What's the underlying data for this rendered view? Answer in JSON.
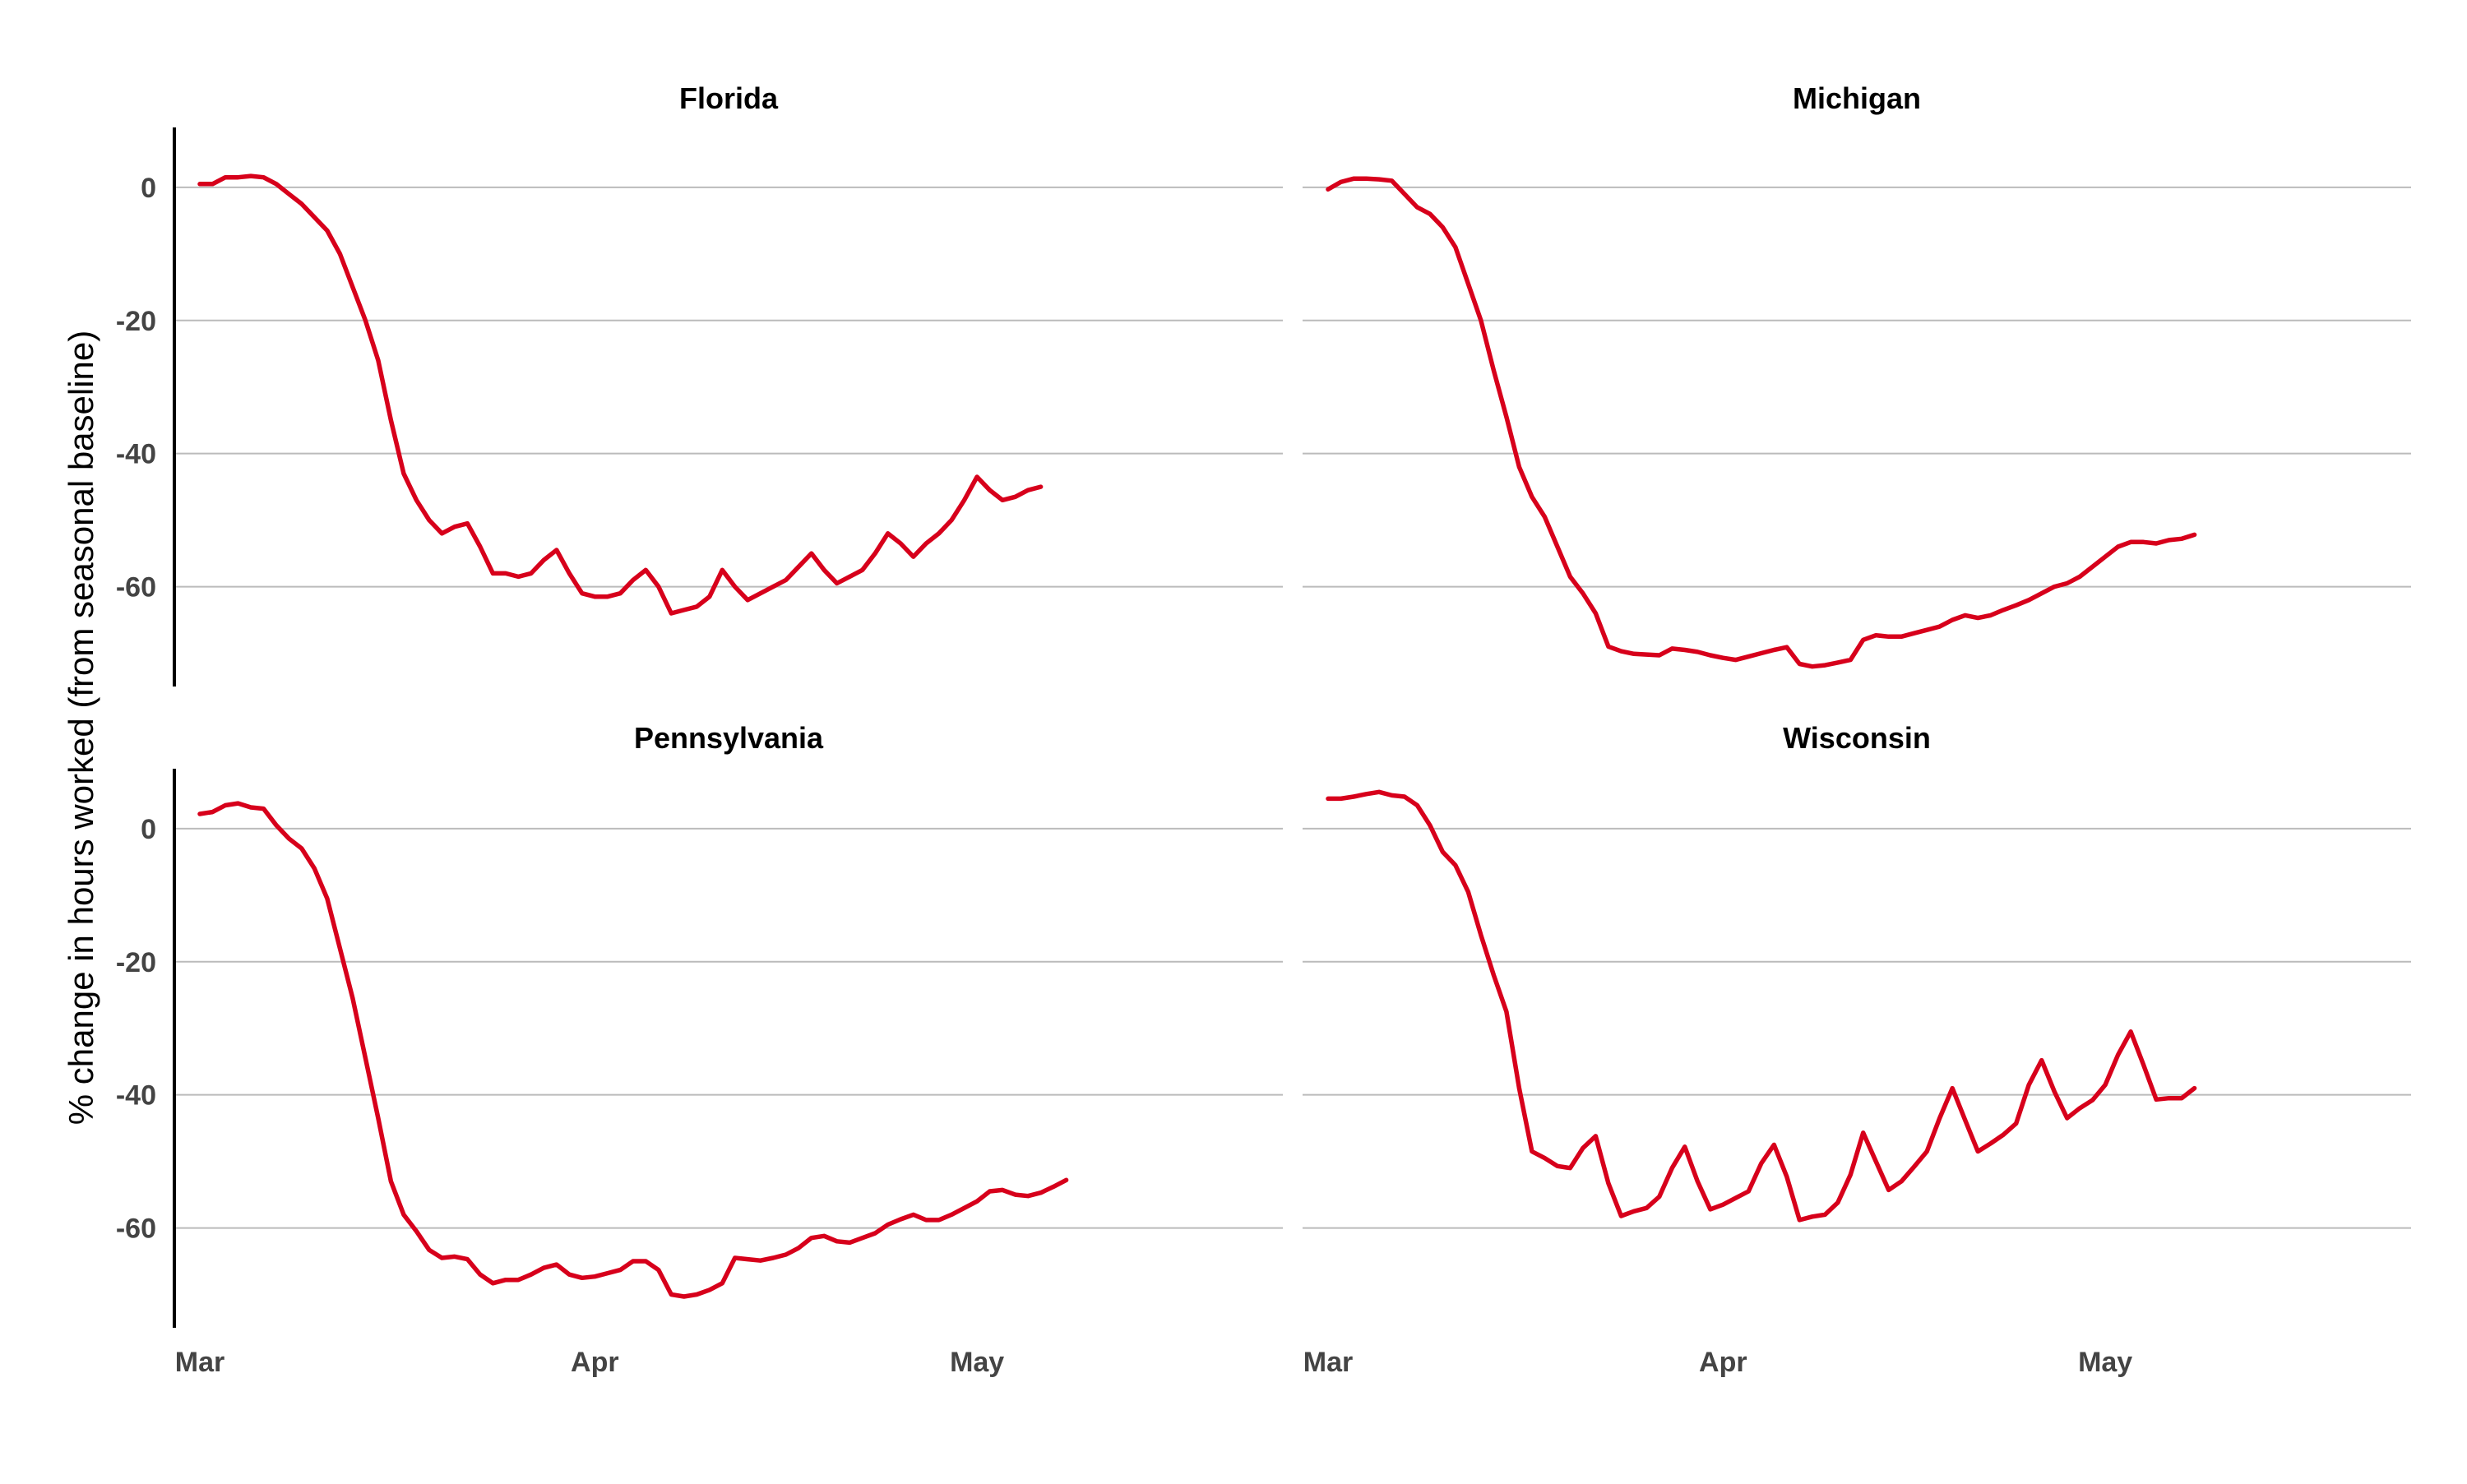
{
  "chart_data": {
    "type": "line",
    "facet_layout": "2x2",
    "ylabel": "% change in hours worked (from seasonal baseline)",
    "xlabel": "",
    "ylim": [
      -75,
      9
    ],
    "xlim": [
      "2020-02-28",
      "2020-05-25"
    ],
    "yticks": [
      0,
      -20,
      -40,
      -60
    ],
    "ytick_labels": [
      "0",
      "-20",
      "-40",
      "-60"
    ],
    "xticks": [
      "2020-03-01",
      "2020-04-01",
      "2020-05-01"
    ],
    "xtick_labels": [
      "Mar",
      "Apr",
      "May"
    ],
    "grid": "horizontal major only",
    "line_color": "#d7001b",
    "grid_color": "#bbbbbb",
    "panels": [
      {
        "title": "Florida",
        "x_start": "2020-03-01",
        "x_step_days": 1,
        "values": [
          0.5,
          0.5,
          1.5,
          1.5,
          1.7,
          1.5,
          0.5,
          -1,
          -2.5,
          -4.5,
          -6.5,
          -10,
          -15,
          -20,
          -26,
          -35,
          -43,
          -47,
          -50,
          -52,
          -51,
          -50.5,
          -54,
          -58,
          -58,
          -58.5,
          -58,
          -56,
          -54.5,
          -58,
          -61,
          -61.5,
          -61.5,
          -61,
          -59,
          -57.5,
          -60,
          -64,
          -63.5,
          -63,
          -61.5,
          -57.5,
          -60,
          -62,
          -61,
          -60,
          -59,
          -57,
          -55,
          -57.5,
          -59.5,
          -58.5,
          -57.5,
          -55,
          -52,
          -53.5,
          -55.5,
          -53.5,
          -52,
          -50,
          -47,
          -43.5,
          -45.5,
          -47,
          -46.5,
          -45.5,
          -45
        ]
      },
      {
        "title": "Michigan",
        "x_start": "2020-03-01",
        "x_step_days": 1,
        "values": [
          -0.3,
          0.8,
          1.3,
          1.3,
          1.2,
          1,
          -1,
          -3,
          -4,
          -6,
          -9,
          -14.5,
          -20,
          -27.5,
          -34.5,
          -42,
          -46.5,
          -49.5,
          -54,
          -58.5,
          -61,
          -64,
          -69,
          -69.7,
          -70.1,
          -70.2,
          -70.3,
          -69.3,
          -69.5,
          -69.8,
          -70.3,
          -70.7,
          -71,
          -70.5,
          -70,
          -69.5,
          -69.1,
          -71.6,
          -72,
          -71.8,
          -71.4,
          -71,
          -68,
          -67.3,
          -67.5,
          -67.5,
          -67,
          -66.5,
          -66,
          -65,
          -64.3,
          -64.7,
          -64.3,
          -63.5,
          -62.8,
          -62,
          -61,
          -60,
          -59.5,
          -58.5,
          -57,
          -55.5,
          -54,
          -53.3,
          -53.3,
          -53.5,
          -53,
          -52.8,
          -52.2
        ]
      },
      {
        "title": "Pennsylvania",
        "x_start": "2020-03-01",
        "x_step_days": 1,
        "values": [
          2.2,
          2.5,
          3.5,
          3.8,
          3.2,
          3,
          0.5,
          -1.5,
          -3,
          -6,
          -10.5,
          -18,
          -25.5,
          -34.5,
          -43.5,
          -53,
          -58,
          -60.5,
          -63.3,
          -64.5,
          -64.3,
          -64.7,
          -67,
          -68.3,
          -67.8,
          -67.8,
          -67,
          -66,
          -65.5,
          -67,
          -67.5,
          -67.3,
          -66.8,
          -66.3,
          -65,
          -65,
          -66.3,
          -70,
          -70.3,
          -70,
          -69.3,
          -68.3,
          -64.5,
          -64.7,
          -64.9,
          -64.5,
          -64,
          -63,
          -61.5,
          -61.2,
          -62,
          -62.2,
          -61.5,
          -60.8,
          -59.5,
          -58.7,
          -58,
          -58.8,
          -58.8,
          -58,
          -57,
          -56,
          -54.5,
          -54.3,
          -55,
          -55.2,
          -54.7,
          -53.8,
          -52.8
        ]
      },
      {
        "title": "Wisconsin",
        "x_start": "2020-03-01",
        "x_step_days": 1,
        "values": [
          4.5,
          4.5,
          4.8,
          5.2,
          5.5,
          5,
          4.8,
          3.5,
          0.5,
          -3.5,
          -5.5,
          -9.5,
          -16,
          -22,
          -27.5,
          -39,
          -48.5,
          -49.5,
          -50.7,
          -51,
          -48,
          -46.2,
          -53.3,
          -58.2,
          -57.5,
          -57,
          -55.3,
          -51,
          -47.8,
          -53,
          -57.2,
          -56.5,
          -55.5,
          -54.5,
          -50.3,
          -47.5,
          -52.3,
          -58.8,
          -58.3,
          -58,
          -56.2,
          -52,
          -45.7,
          -50,
          -54.3,
          -53,
          -50.8,
          -48.5,
          -43.5,
          -39,
          -43.8,
          -48.5,
          -47.3,
          -46,
          -44.3,
          -38.5,
          -34.8,
          -39.5,
          -43.5,
          -42,
          -40.8,
          -38.5,
          -34,
          -30.5,
          -35.5,
          -40.7,
          -40.5,
          -40.5,
          -39
        ]
      }
    ]
  }
}
